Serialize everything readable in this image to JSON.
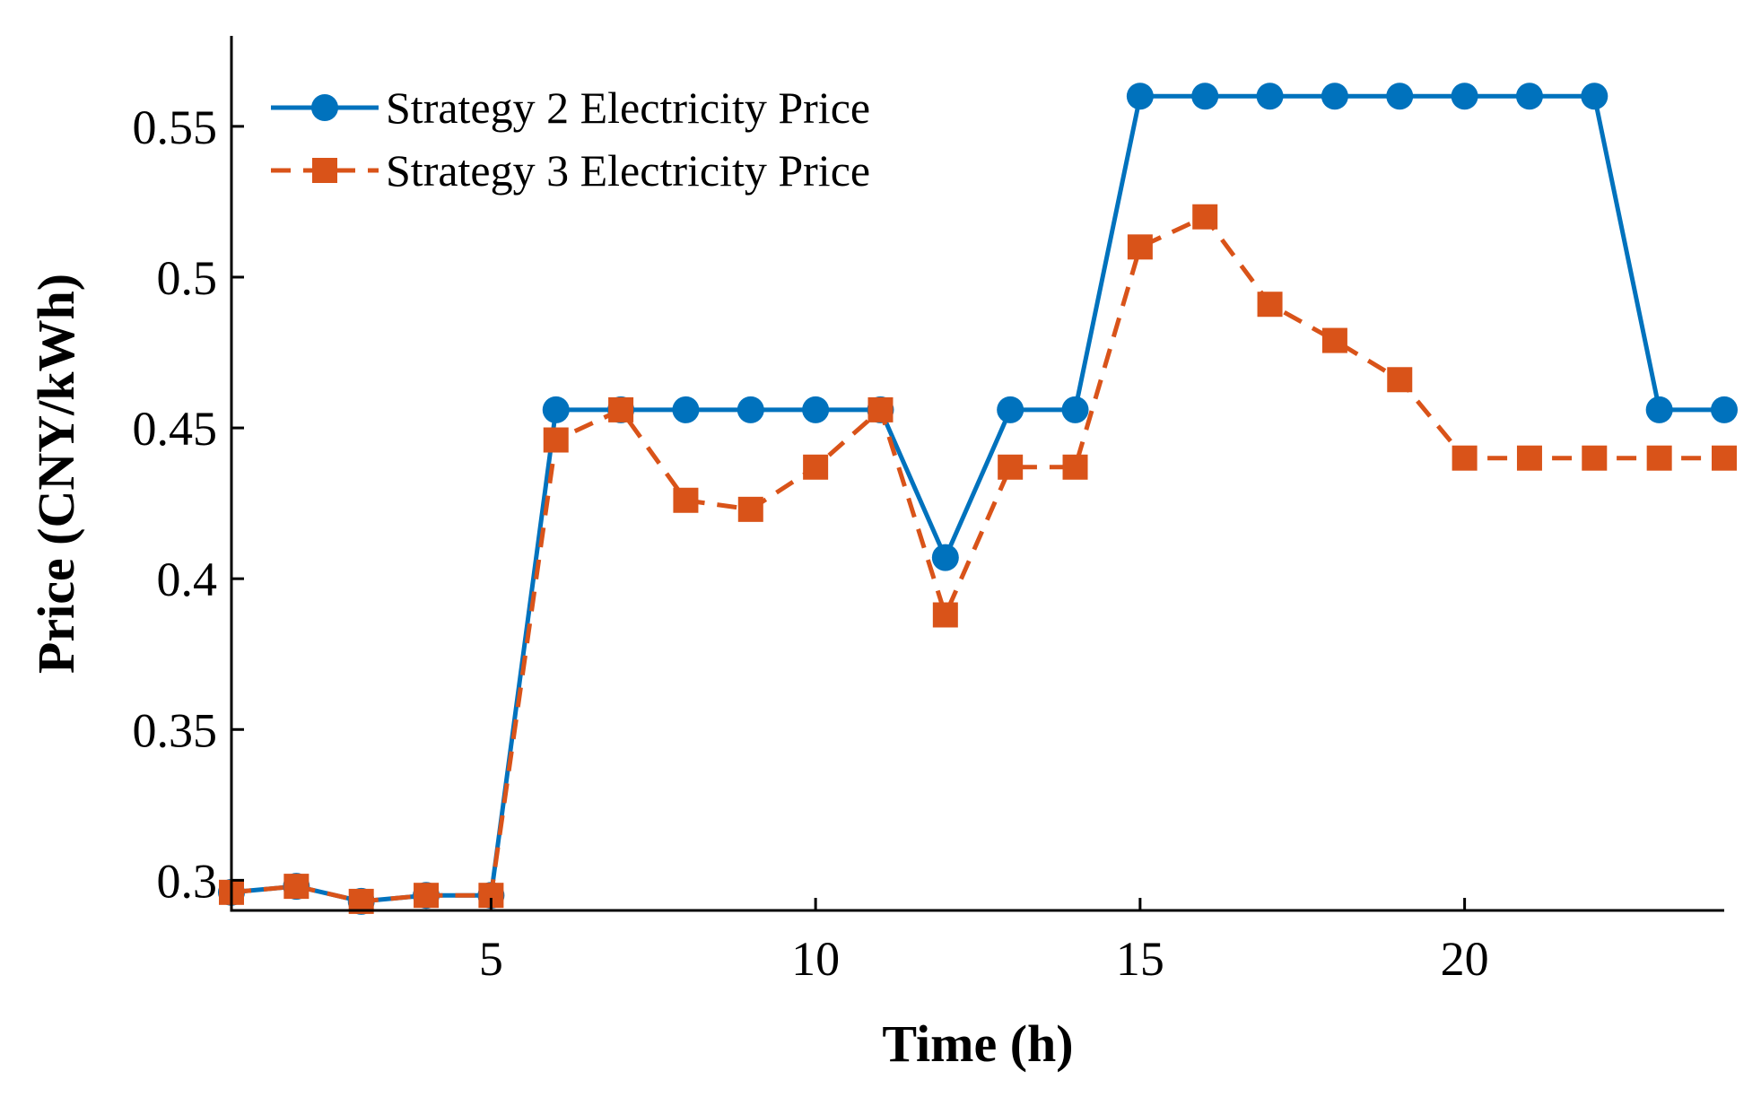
{
  "chart_data": {
    "type": "line",
    "title": "",
    "xlabel": "Time (h)",
    "ylabel": "Price (CNY/kWh)",
    "xlim": [
      1,
      24
    ],
    "ylim": [
      0.29,
      0.58
    ],
    "xticks": [
      5,
      10,
      15,
      20
    ],
    "yticks": [
      0.3,
      0.35,
      0.4,
      0.45,
      0.5,
      0.55
    ],
    "ytick_labels": [
      "0.3",
      "0.35",
      "0.4",
      "0.45",
      "0.5",
      "0.55"
    ],
    "xtick_labels": [
      "5",
      "10",
      "15",
      "20"
    ],
    "legend_position": "top-left",
    "x": [
      1,
      2,
      3,
      4,
      5,
      6,
      7,
      8,
      9,
      10,
      11,
      12,
      13,
      14,
      15,
      16,
      17,
      18,
      19,
      20,
      21,
      22,
      23,
      24
    ],
    "series": [
      {
        "name": "Strategy 2 Electricity Price",
        "color": "#0072BD",
        "line_style": "solid",
        "marker": "circle",
        "values": [
          0.296,
          0.298,
          0.293,
          0.295,
          0.295,
          0.456,
          0.456,
          0.456,
          0.456,
          0.456,
          0.456,
          0.407,
          0.456,
          0.456,
          0.56,
          0.56,
          0.56,
          0.56,
          0.56,
          0.56,
          0.56,
          0.56,
          0.456,
          0.456
        ]
      },
      {
        "name": "Strategy 3 Electricity Price",
        "color": "#D95319",
        "line_style": "dashed",
        "marker": "square",
        "values": [
          0.296,
          0.298,
          0.293,
          0.295,
          0.295,
          0.446,
          0.456,
          0.426,
          0.423,
          0.437,
          0.456,
          0.388,
          0.437,
          0.437,
          0.51,
          0.52,
          0.491,
          0.479,
          0.466,
          0.44,
          0.44,
          0.44,
          0.44,
          0.44
        ]
      }
    ]
  }
}
